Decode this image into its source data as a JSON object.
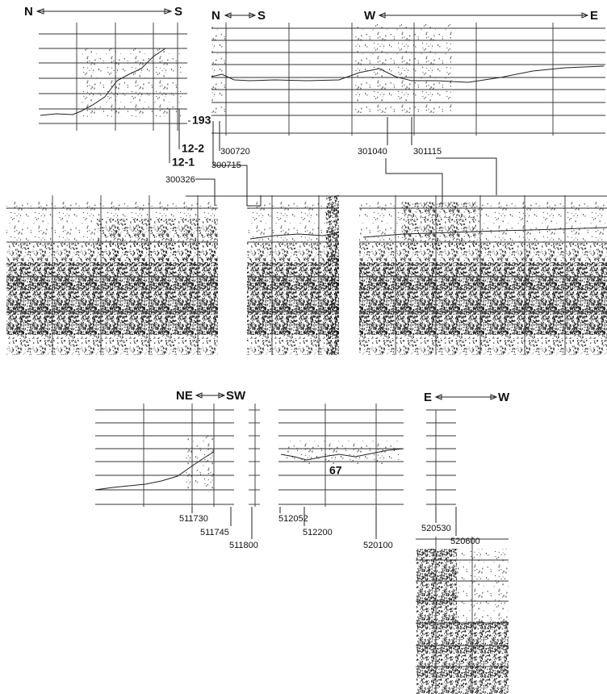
{
  "upper_left": {
    "start": "N",
    "end": "S",
    "markers": [
      "193",
      "12-2",
      "12-1",
      "300326"
    ]
  },
  "upper_right": {
    "left_start": "N",
    "left_end": "S",
    "right_start": "W",
    "right_end": "E",
    "markers": [
      "300720",
      "300715",
      "301040",
      "301115"
    ]
  },
  "lower_left": {
    "start": "NE",
    "end": "SW",
    "markers": [
      "511730",
      "511745",
      "511800",
      "512052",
      "512200",
      "520100"
    ],
    "annotation": "67"
  },
  "lower_right": {
    "start": "E",
    "end": "W",
    "markers": [
      "520530",
      "520600"
    ]
  }
}
